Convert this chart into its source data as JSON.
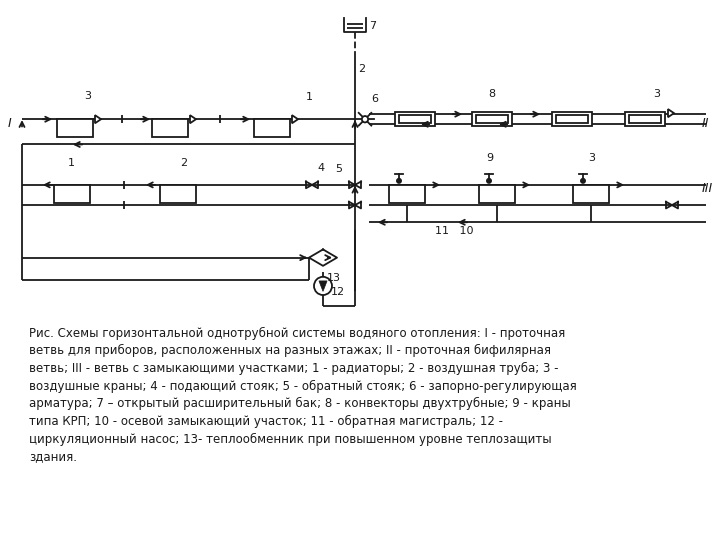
{
  "fig_width": 7.2,
  "fig_height": 5.4,
  "dpi": 100,
  "bg_color": "#ffffff",
  "lc": "#1a1a1a",
  "lw": 1.3,
  "caption_fontsize": 8.5,
  "caption": "Рис. Схемы горизонтальной однотрубной системы водяного отопления: I - проточная\nветвь для приборов, расположенных на разных этажах; II - проточная бифилярная\nветвь; III - ветвь с замыкающими участками; 1 - радиаторы; 2 - воздушная труба; 3 -\nвоздушные краны; 4 - подающий стояк; 5 - обратный стояк; 6 - запорно-регулирующая\nарматура; 7 – открытый расширительный бак; 8 - конвекторы двухтрубные; 9 - краны\nтипа КРП; 10 - осевой замыкающий участок; 11 - обратная магистраль; 12 -\nциркуляционный насос; 13- теплообменник при повышенном уровне теплозащиты\nздания."
}
